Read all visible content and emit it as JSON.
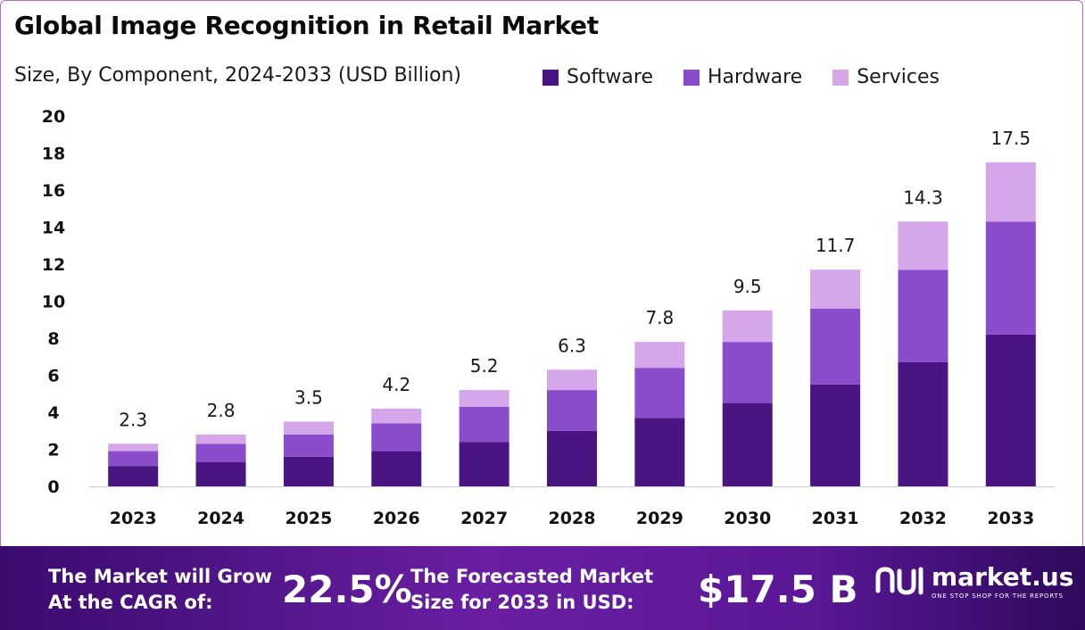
{
  "header": {
    "title": "Global Image Recognition in Retail Market",
    "subtitle": "Size, By Component, 2024-2033 (USD Billion)"
  },
  "colors": {
    "software": "#4a1482",
    "hardware": "#8b4ccc",
    "services": "#d5a6ea",
    "axis": "#cccccc"
  },
  "chart_data": {
    "type": "bar",
    "stacked": true,
    "categories": [
      "2023",
      "2024",
      "2025",
      "2026",
      "2027",
      "2028",
      "2029",
      "2030",
      "2031",
      "2032",
      "2033"
    ],
    "series": [
      {
        "name": "Software",
        "values": [
          1.1,
          1.3,
          1.6,
          1.9,
          2.4,
          3.0,
          3.7,
          4.5,
          5.5,
          6.7,
          8.2
        ]
      },
      {
        "name": "Hardware",
        "values": [
          0.8,
          1.0,
          1.2,
          1.5,
          1.9,
          2.2,
          2.7,
          3.3,
          4.1,
          5.0,
          6.1
        ]
      },
      {
        "name": "Services",
        "values": [
          0.4,
          0.5,
          0.7,
          0.8,
          0.9,
          1.1,
          1.4,
          1.7,
          2.1,
          2.6,
          3.2
        ]
      }
    ],
    "totals": [
      "2.3",
      "2.8",
      "3.5",
      "4.2",
      "5.2",
      "6.3",
      "7.8",
      "9.5",
      "11.7",
      "14.3",
      "17.5"
    ],
    "ylim": [
      0,
      20
    ],
    "yticks": [
      "0",
      "2",
      "4",
      "6",
      "8",
      "10",
      "12",
      "14",
      "16",
      "18",
      "20"
    ],
    "grid": false,
    "legend_position": "top"
  },
  "footer": {
    "cagr_line1": "The Market will Grow",
    "cagr_line2": "At the CAGR of:",
    "cagr_value": "22.5%",
    "forecast_line1": "The Forecasted Market",
    "forecast_line2": "Size for 2033 in USD:",
    "forecast_value": "$17.5 B",
    "brand_name": "market.us",
    "brand_tagline": "ONE STOP SHOP FOR THE REPORTS"
  }
}
